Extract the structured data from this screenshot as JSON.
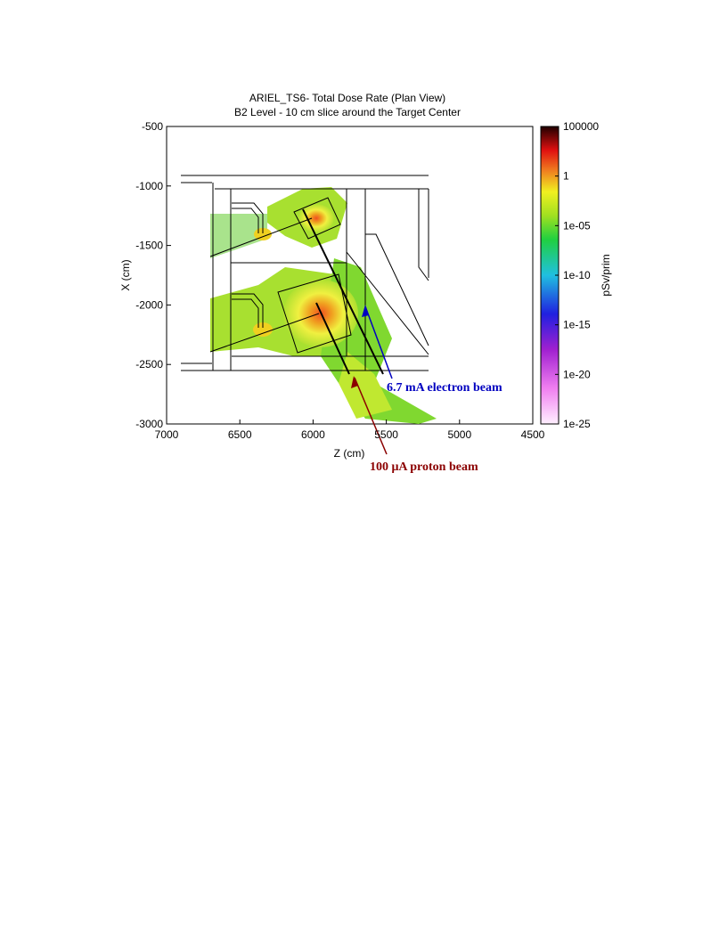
{
  "chart_data": {
    "type": "heatmap",
    "title": "ARIEL_TS6- Total Dose Rate (Plan View)",
    "subtitle": "B2 Level - 10 cm slice around the Target Center",
    "x_label": "Z (cm)",
    "y_label": "X (cm)",
    "xlim": [
      7000,
      4500
    ],
    "xticks": [
      7000,
      6500,
      6000,
      5500,
      5000,
      4500
    ],
    "ylim": [
      -3000,
      -500
    ],
    "yticks": [
      -500,
      -1000,
      -1500,
      -2000,
      -2500,
      -3000
    ],
    "colorbar_label": "pSv/prim",
    "clim": [
      1e-25,
      100000
    ],
    "log_scale": true,
    "cticks": [
      100000,
      1,
      {
        "value": 1e-05,
        "label": "1e-05"
      },
      {
        "value": 1e-10,
        "label": "1e-10"
      },
      {
        "value": 1e-15,
        "label": "1e-15"
      },
      {
        "value": 1e-20,
        "label": "1e-20"
      },
      {
        "value": 1e-25,
        "label": "1e-25"
      }
    ],
    "annotations": [
      "6.7 mA electron beam",
      "100 μA proton beam"
    ]
  }
}
